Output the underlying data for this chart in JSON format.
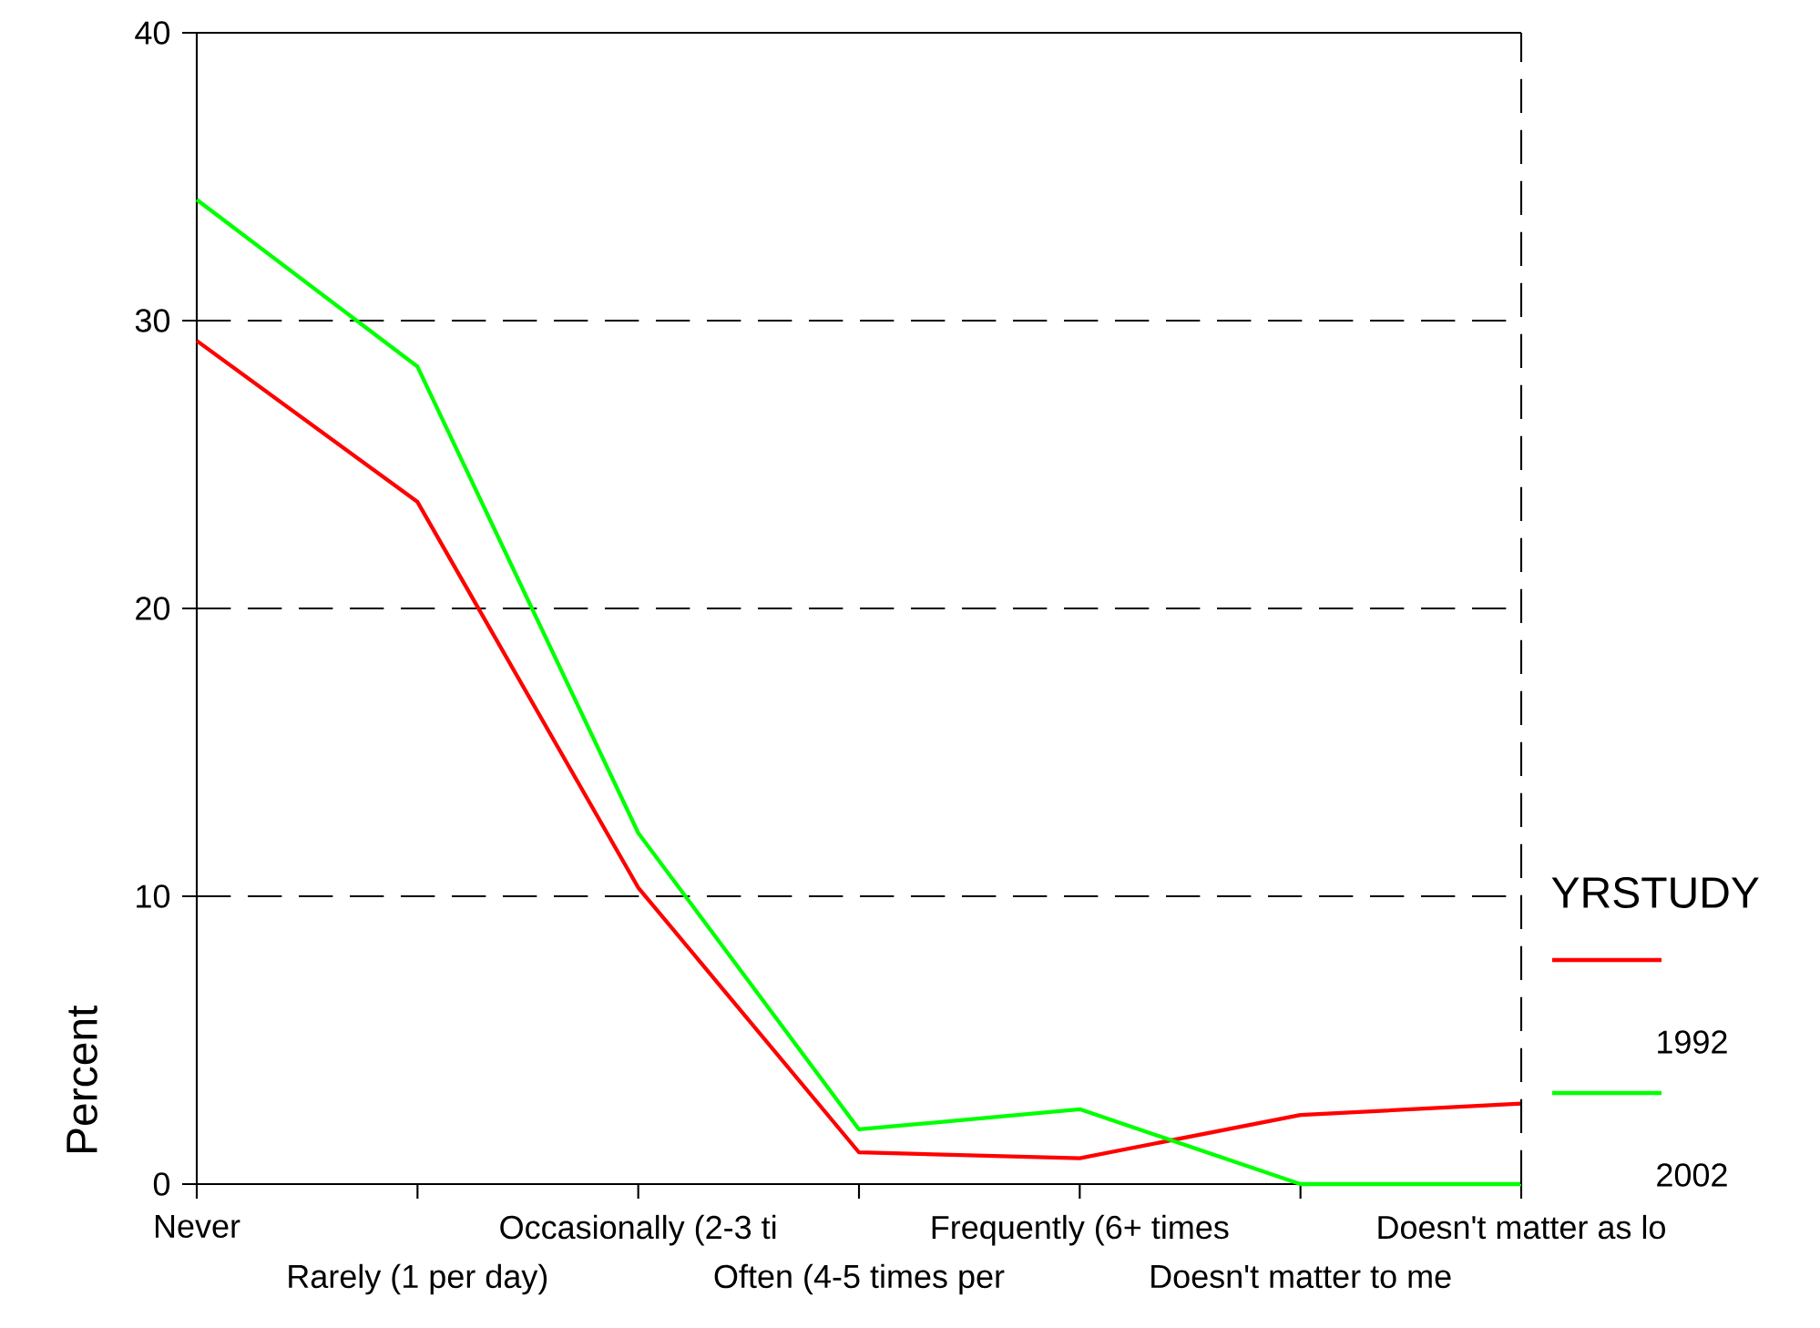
{
  "chart_data": {
    "type": "line",
    "ylabel": "Percent",
    "legend_title": "YRSTUDY",
    "legend": "right",
    "grid": "y",
    "categories": [
      "Never",
      "Rarely (1 per day)",
      "Occasionally (2-3 ti",
      "Often (4-5 times per",
      "Frequently (6+ times",
      "Doesn't matter to me",
      "Doesn't matter as lo"
    ],
    "ylim": [
      0,
      40
    ],
    "yticks": [
      0,
      10,
      20,
      30,
      40
    ],
    "series": [
      {
        "name": "1992",
        "color": "#ff0000",
        "values": [
          29.3,
          23.7,
          10.3,
          1.1,
          0.9,
          2.4,
          2.8
        ]
      },
      {
        "name": "2002",
        "color": "#00ff00",
        "values": [
          34.2,
          28.4,
          12.2,
          1.9,
          2.6,
          0,
          0
        ]
      }
    ]
  }
}
